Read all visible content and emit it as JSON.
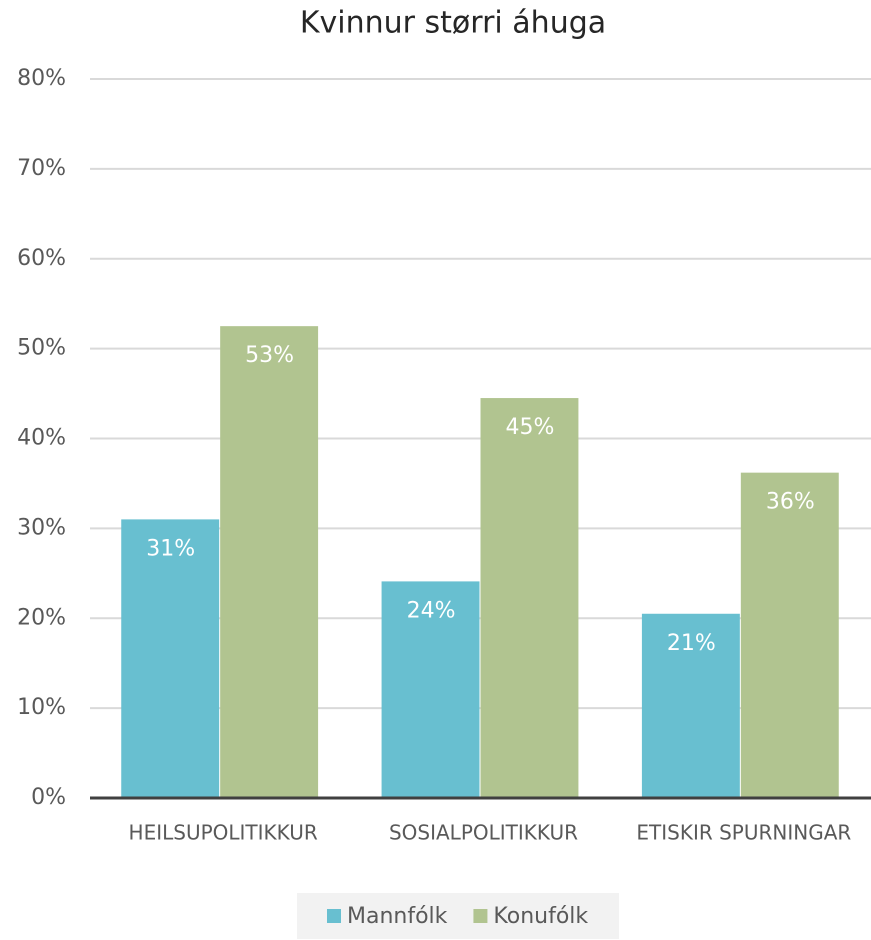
{
  "chart_data": {
    "type": "bar",
    "title": "Kvinnur størri áhuga",
    "categories": [
      "HEILSUPOLITIKKUR",
      "SOSIALPOLITIKKUR",
      "ETISKIR SPURNINGAR"
    ],
    "series": [
      {
        "name": "Mannfólk",
        "color": "#68bfd0",
        "values": [
          31,
          24.1,
          20.5
        ],
        "value_labels": [
          "31%",
          "24%",
          "21%"
        ]
      },
      {
        "name": "Konufólk",
        "color": "#b1c490",
        "values": [
          52.5,
          44.5,
          36.2
        ],
        "value_labels": [
          "53%",
          "45%",
          "36%"
        ]
      }
    ],
    "ylim": [
      0,
      80
    ],
    "yticks": [
      {
        "value": 0,
        "label": "0%"
      },
      {
        "value": 10,
        "label": "10%"
      },
      {
        "value": 20,
        "label": "20%"
      },
      {
        "value": 30,
        "label": "30%"
      },
      {
        "value": 40,
        "label": "40%"
      },
      {
        "value": 50,
        "label": "50%"
      },
      {
        "value": 60,
        "label": "60%"
      },
      {
        "value": 70,
        "label": "70%"
      },
      {
        "value": 80,
        "label": "80%"
      }
    ],
    "grid": true,
    "legend": "bottom"
  }
}
